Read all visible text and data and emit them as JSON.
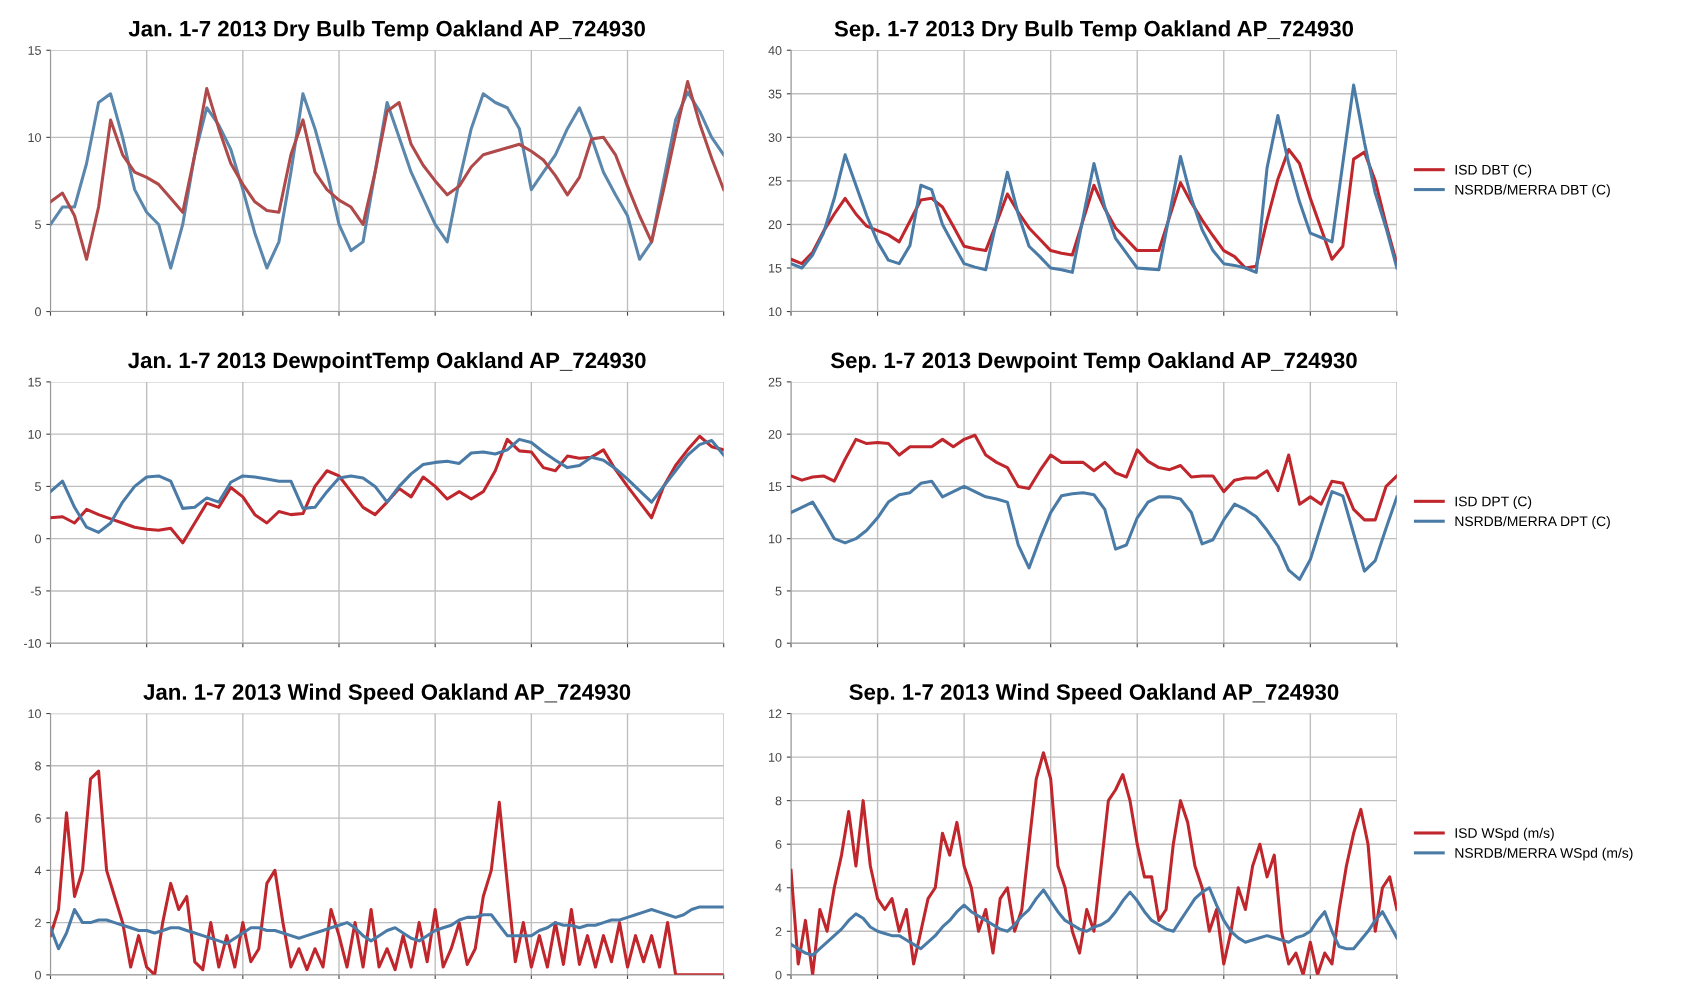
{
  "chart_data": [
    {
      "type": "line",
      "title": "Jan. 1-7 2013 Dry Bulb Temp Oakland AP_724930",
      "categories": [
        null,
        null,
        null,
        null,
        null,
        null,
        null,
        null,
        null,
        null,
        null,
        null,
        null,
        null,
        null,
        null,
        null,
        null,
        null,
        null,
        null,
        null,
        null,
        null,
        null,
        null,
        null,
        null,
        null,
        null,
        null,
        null,
        null,
        null,
        null,
        null,
        null,
        null,
        null,
        null,
        null,
        null,
        null,
        null,
        null,
        null,
        null,
        null,
        null,
        null,
        null,
        null,
        null,
        null,
        null,
        null,
        null
      ],
      "ylim": [
        0,
        15
      ],
      "yticks": [
        0,
        5,
        10,
        15
      ],
      "grid": true,
      "tick_labels": "y",
      "legend": false,
      "series": [
        {
          "color": "#5b87ad",
          "values": [
            5,
            6,
            6,
            8.5,
            12,
            12.5,
            10,
            7,
            5.7,
            5,
            2.5,
            5,
            9,
            11.7,
            10.7,
            9.3,
            7,
            4.5,
            2.5,
            4,
            8,
            12.5,
            10.5,
            8,
            5,
            3.5,
            4,
            8,
            12,
            10,
            8,
            6.5,
            5,
            4,
            7.5,
            10.5,
            12.5,
            12,
            11.7,
            10.5,
            7,
            8,
            9,
            10.5,
            11.7,
            10,
            8,
            6.7,
            5.5,
            3,
            4,
            7.5,
            11,
            12.6,
            11.5,
            10,
            9
          ]
        },
        {
          "color": "#b04a4a",
          "values": [
            6.3,
            6.8,
            5.5,
            3,
            6,
            11,
            9,
            8,
            7.7,
            7.3,
            6.5,
            5.7,
            9,
            12.8,
            10.5,
            8.5,
            7.3,
            6.3,
            5.8,
            5.7,
            9,
            11,
            8,
            7,
            6.4,
            6,
            5,
            8,
            11.5,
            12,
            9.6,
            8.4,
            7.5,
            6.7,
            7.2,
            8.3,
            9,
            9.2,
            9.4,
            9.6,
            9.2,
            8.7,
            7.8,
            6.7,
            7.7,
            9.9,
            10,
            9,
            7.2,
            5.5,
            4,
            7,
            10.2,
            13.2,
            10.8,
            8.8,
            7
          ]
        }
      ]
    },
    {
      "type": "line",
      "title": "Sep. 1-7 2013 Dry Bulb Temp Oakland AP_724930",
      "categories": [
        null,
        null,
        null,
        null,
        null,
        null,
        null,
        null,
        null,
        null,
        null,
        null,
        null,
        null,
        null,
        null,
        null,
        null,
        null,
        null,
        null,
        null,
        null,
        null,
        null,
        null,
        null,
        null,
        null,
        null,
        null,
        null,
        null,
        null,
        null,
        null,
        null,
        null,
        null,
        null,
        null,
        null,
        null,
        null,
        null,
        null,
        null,
        null,
        null,
        null,
        null,
        null,
        null,
        null,
        null,
        null,
        null
      ],
      "ylim": [
        10,
        40
      ],
      "yticks": [
        10,
        15,
        20,
        25,
        30,
        35,
        40
      ],
      "grid": true,
      "tick_labels": "y",
      "legend": "right",
      "series": [
        {
          "name": "ISD DBT (C)",
          "color": "#c0272d",
          "values": [
            16,
            15.5,
            16.8,
            19.2,
            21.2,
            23,
            21.2,
            19.8,
            19.3,
            18.8,
            18,
            20.4,
            22.8,
            23,
            22,
            19.8,
            17.5,
            17.2,
            17,
            20.2,
            23.5,
            21.4,
            19.6,
            18.3,
            17,
            16.7,
            16.5,
            20.5,
            24.5,
            21.8,
            19.6,
            18.3,
            17,
            17,
            17,
            20.9,
            24.8,
            22.5,
            20.5,
            18.7,
            17,
            16.3,
            15,
            15.2,
            20.5,
            25.2,
            28.6,
            27,
            23,
            19.5,
            16,
            17.5,
            27.5,
            28.3,
            25,
            20,
            15.5
          ]
        },
        {
          "name": "NSRDB/MERRA DBT (C)",
          "color": "#4a7ba7",
          "values": [
            15.5,
            15,
            16.5,
            19,
            23,
            28,
            24.5,
            21,
            18,
            15.9,
            15.5,
            17.6,
            24.5,
            24,
            20,
            17.7,
            15.5,
            15.1,
            14.8,
            20.4,
            26,
            21.2,
            17.5,
            16.3,
            15,
            14.8,
            14.5,
            20.8,
            27,
            22,
            18.4,
            16.7,
            15,
            14.9,
            14.8,
            21.3,
            27.8,
            23,
            19.4,
            17,
            15.5,
            15.3,
            15,
            14.5,
            26.5,
            32.5,
            27,
            22.6,
            19,
            18.5,
            18,
            27,
            36,
            29.4,
            23.6,
            19.6,
            15
          ]
        }
      ]
    },
    {
      "type": "line",
      "title": "Jan. 1-7 2013 DewpointTemp Oakland AP_724930",
      "categories": [
        null,
        null,
        null,
        null,
        null,
        null,
        null,
        null,
        null,
        null,
        null,
        null,
        null,
        null,
        null,
        null,
        null,
        null,
        null,
        null,
        null,
        null,
        null,
        null,
        null,
        null,
        null,
        null,
        null,
        null,
        null,
        null,
        null,
        null,
        null,
        null,
        null,
        null,
        null,
        null,
        null,
        null,
        null,
        null,
        null,
        null,
        null,
        null,
        null,
        null,
        null,
        null,
        null,
        null,
        null,
        null,
        null
      ],
      "ylim": [
        -10,
        15
      ],
      "yticks": [
        {
          "value": -10,
          "label": "-10"
        },
        {
          "value": -5,
          "label": "-5"
        },
        0,
        5,
        10,
        15
      ],
      "grid": true,
      "tick_labels": "y",
      "legend": false,
      "series": [
        {
          "color": "#c0272d",
          "values": [
            2,
            2.1,
            1.5,
            2.8,
            2.3,
            1.9,
            1.5,
            1.1,
            0.9,
            0.8,
            1,
            -0.4,
            1.5,
            3.4,
            3,
            4.9,
            4,
            2.3,
            1.5,
            2.6,
            2.3,
            2.4,
            5,
            6.5,
            6,
            4.5,
            3,
            2.3,
            3.5,
            4.8,
            4,
            5.9,
            5,
            3.8,
            4.5,
            3.8,
            4.5,
            6.5,
            9.5,
            8.4,
            8.3,
            6.8,
            6.5,
            7.9,
            7.7,
            7.8,
            8.5,
            6.6,
            5,
            3.5,
            2,
            5,
            7,
            8.5,
            9.8,
            8.8,
            8.5
          ]
        },
        {
          "color": "#4a7ba7",
          "values": [
            4.5,
            5.5,
            3,
            1.1,
            0.6,
            1.5,
            3.5,
            5,
            5.9,
            6,
            5.5,
            2.9,
            3,
            3.9,
            3.5,
            5.4,
            6,
            5.9,
            5.7,
            5.5,
            5.5,
            2.9,
            3,
            4.5,
            5.8,
            6,
            5.8,
            5,
            3.5,
            5,
            6.2,
            7.1,
            7.3,
            7.4,
            7.2,
            8.2,
            8.3,
            8.1,
            8.5,
            9.5,
            9.2,
            8.3,
            7.5,
            6.8,
            7,
            7.8,
            7.5,
            6.7,
            5.7,
            4.6,
            3.5,
            5,
            6.5,
            8,
            9,
            9.4,
            8
          ]
        }
      ]
    },
    {
      "type": "line",
      "title": "Sep. 1-7 2013 Dewpoint Temp Oakland AP_724930",
      "categories": [
        null,
        null,
        null,
        null,
        null,
        null,
        null,
        null,
        null,
        null,
        null,
        null,
        null,
        null,
        null,
        null,
        null,
        null,
        null,
        null,
        null,
        null,
        null,
        null,
        null,
        null,
        null,
        null,
        null,
        null,
        null,
        null,
        null,
        null,
        null,
        null,
        null,
        null,
        null,
        null,
        null,
        null,
        null,
        null,
        null,
        null,
        null,
        null,
        null,
        null,
        null,
        null,
        null,
        null,
        null,
        null,
        null
      ],
      "ylim": [
        0,
        25
      ],
      "yticks": [
        0,
        5,
        10,
        15,
        20,
        25
      ],
      "grid": true,
      "tick_labels": "y",
      "legend": "right",
      "series": [
        {
          "name": "ISD DPT (C)",
          "color": "#c0272d",
          "values": [
            16,
            15.6,
            15.9,
            16,
            15.5,
            17.6,
            19.5,
            19.1,
            19.2,
            19.1,
            18,
            18.8,
            18.8,
            18.8,
            19.5,
            18.8,
            19.5,
            19.9,
            18,
            17.3,
            16.8,
            15,
            14.8,
            16.5,
            18,
            17.3,
            17.3,
            17.3,
            16.5,
            17.3,
            16.3,
            15.9,
            18.5,
            17.4,
            16.8,
            16.6,
            17,
            15.9,
            16,
            16,
            14.5,
            15.6,
            15.8,
            15.8,
            16.5,
            14.6,
            18,
            13.3,
            14,
            13.3,
            15.5,
            15.3,
            12.8,
            11.8,
            11.8,
            15,
            16
          ]
        },
        {
          "name": "NSRDB/MERRA DPT (C)",
          "color": "#4a7ba7",
          "values": [
            12.5,
            13,
            13.5,
            11.8,
            10,
            9.6,
            10,
            10.8,
            12,
            13.5,
            14.2,
            14.4,
            15.3,
            15.5,
            14,
            14.5,
            15,
            14.5,
            14,
            13.8,
            13.5,
            9.4,
            7.2,
            10,
            12.5,
            14.1,
            14.3,
            14.4,
            14.2,
            12.8,
            9,
            9.4,
            12,
            13.5,
            14,
            14,
            13.8,
            12.5,
            9.5,
            9.9,
            11.8,
            13.3,
            12.8,
            12.1,
            10.8,
            9.3,
            7,
            6.1,
            8,
            11.3,
            14.5,
            14.1,
            10.5,
            6.9,
            7.9,
            11,
            14
          ]
        }
      ]
    },
    {
      "type": "line",
      "title": "Jan. 1-7 2013 Wind Speed Oakland AP_724930",
      "categories": [
        null,
        null,
        null,
        null,
        null,
        null,
        null,
        null,
        null,
        null,
        null,
        null,
        null,
        null,
        null,
        null,
        null,
        null,
        null,
        null,
        null,
        null,
        null,
        null,
        null,
        null,
        null,
        null,
        null,
        null,
        null,
        null,
        null,
        null,
        null,
        null,
        null,
        null,
        null,
        null,
        null,
        null,
        null,
        null,
        null,
        null,
        null,
        null,
        null,
        null,
        null,
        null,
        null,
        null,
        null,
        null,
        null,
        null,
        null,
        null,
        null,
        null,
        null,
        null,
        null,
        null,
        null,
        null,
        null,
        null,
        null,
        null,
        null,
        null,
        null,
        null,
        null,
        null,
        null,
        null,
        null,
        null,
        null,
        null,
        null
      ],
      "ylim": [
        0,
        10
      ],
      "yticks": [
        0,
        2,
        4,
        6,
        8,
        10
      ],
      "grid": true,
      "tick_labels": "y",
      "legend": false,
      "series": [
        {
          "color": "#c0272d",
          "values": [
            1.5,
            2.5,
            6.2,
            3,
            4,
            7.5,
            7.8,
            4,
            3,
            2,
            0.3,
            1.5,
            0.3,
            0,
            2,
            3.5,
            2.5,
            3,
            0.5,
            0.2,
            2,
            0.3,
            1.5,
            0.3,
            2,
            0.5,
            1,
            3.5,
            4,
            2,
            0.3,
            1,
            0.2,
            1,
            0.3,
            2.5,
            1.5,
            0.3,
            2,
            0.3,
            2.5,
            0.3,
            1,
            0.2,
            1.5,
            0.3,
            2,
            0.5,
            2.5,
            0.3,
            1,
            2,
            0.4,
            1,
            3,
            4,
            6.6,
            3.5,
            0.5,
            2,
            0.3,
            1.5,
            0.3,
            2,
            0.4,
            2.5,
            0.4,
            1.5,
            0.3,
            1.5,
            0.5,
            2,
            0.3,
            1.5,
            0.5,
            1.5,
            0.3,
            2,
            0,
            0,
            0,
            0,
            0,
            0,
            0
          ]
        },
        {
          "color": "#4a7ba7",
          "values": [
            1.8,
            1,
            1.6,
            2.5,
            2,
            2,
            2.1,
            2.1,
            2,
            1.9,
            1.8,
            1.7,
            1.7,
            1.6,
            1.7,
            1.8,
            1.8,
            1.7,
            1.6,
            1.5,
            1.4,
            1.3,
            1.2,
            1.4,
            1.6,
            1.8,
            1.8,
            1.7,
            1.7,
            1.6,
            1.5,
            1.4,
            1.5,
            1.6,
            1.7,
            1.8,
            1.9,
            2,
            1.8,
            1.5,
            1.3,
            1.5,
            1.7,
            1.8,
            1.6,
            1.4,
            1.3,
            1.5,
            1.7,
            1.8,
            1.9,
            2.1,
            2.2,
            2.2,
            2.3,
            2.3,
            1.9,
            1.5,
            1.5,
            1.5,
            1.5,
            1.7,
            1.8,
            2,
            1.9,
            1.9,
            1.8,
            1.9,
            1.9,
            2,
            2.1,
            2.1,
            2.2,
            2.3,
            2.4,
            2.5,
            2.4,
            2.3,
            2.2,
            2.3,
            2.5,
            2.6,
            2.6,
            2.6,
            2.6
          ]
        }
      ]
    },
    {
      "type": "line",
      "title": "Sep. 1-7 2013 Wind Speed Oakland AP_724930",
      "categories": [
        null,
        null,
        null,
        null,
        null,
        null,
        null,
        null,
        null,
        null,
        null,
        null,
        null,
        null,
        null,
        null,
        null,
        null,
        null,
        null,
        null,
        null,
        null,
        null,
        null,
        null,
        null,
        null,
        null,
        null,
        null,
        null,
        null,
        null,
        null,
        null,
        null,
        null,
        null,
        null,
        null,
        null,
        null,
        null,
        null,
        null,
        null,
        null,
        null,
        null,
        null,
        null,
        null,
        null,
        null,
        null,
        null,
        null,
        null,
        null,
        null,
        null,
        null,
        null,
        null,
        null,
        null,
        null,
        null,
        null,
        null,
        null,
        null,
        null,
        null,
        null,
        null,
        null,
        null,
        null,
        null,
        null,
        null,
        null,
        null
      ],
      "ylim": [
        0,
        12
      ],
      "yticks": [
        0,
        2,
        4,
        6,
        8,
        10,
        12
      ],
      "grid": true,
      "tick_labels": "y",
      "legend": "right",
      "series": [
        {
          "name": "ISD WSpd (m/s)",
          "color": "#c0272d",
          "values": [
            4.8,
            0.5,
            2.5,
            0,
            3,
            2,
            4,
            5.5,
            7.5,
            5,
            8,
            5,
            3.5,
            3,
            3.5,
            2,
            3,
            0.5,
            2,
            3.5,
            4,
            6.5,
            5.5,
            7,
            5,
            4,
            2,
            3,
            1,
            3.5,
            4,
            2,
            3,
            6,
            9,
            10.2,
            9,
            5,
            4,
            2,
            1,
            3,
            2,
            5,
            8,
            8.5,
            9.2,
            8,
            6,
            4.5,
            4.5,
            2.5,
            3,
            6,
            8,
            7,
            5,
            4,
            2,
            3,
            0.5,
            2,
            4,
            3,
            5,
            6,
            4.5,
            5.5,
            2,
            0.5,
            1,
            0,
            1.5,
            0,
            1,
            0.5,
            3,
            5,
            6.5,
            7.6,
            6,
            2,
            4,
            4.5,
            3
          ]
        },
        {
          "name": "NSRDB/MERRA WSpd (m/s)",
          "color": "#4a7ba7",
          "values": [
            1.4,
            1.2,
            1,
            0.9,
            1.2,
            1.5,
            1.8,
            2.1,
            2.5,
            2.8,
            2.6,
            2.2,
            2,
            1.9,
            1.8,
            1.8,
            1.6,
            1.4,
            1.2,
            1.5,
            1.8,
            2.2,
            2.5,
            2.9,
            3.2,
            2.9,
            2.7,
            2.5,
            2.3,
            2.1,
            2,
            2.3,
            2.7,
            3,
            3.5,
            3.9,
            3.4,
            2.9,
            2.5,
            2.3,
            2.1,
            2,
            2.2,
            2.3,
            2.5,
            2.9,
            3.4,
            3.8,
            3.4,
            2.9,
            2.5,
            2.3,
            2.1,
            2,
            2.5,
            3,
            3.5,
            3.8,
            4,
            3.2,
            2.5,
            2,
            1.7,
            1.5,
            1.6,
            1.7,
            1.8,
            1.7,
            1.6,
            1.5,
            1.7,
            1.8,
            2,
            2.5,
            2.9,
            2,
            1.3,
            1.2,
            1.2,
            1.6,
            2,
            2.5,
            2.9,
            2.3,
            1.7
          ]
        }
      ]
    }
  ]
}
